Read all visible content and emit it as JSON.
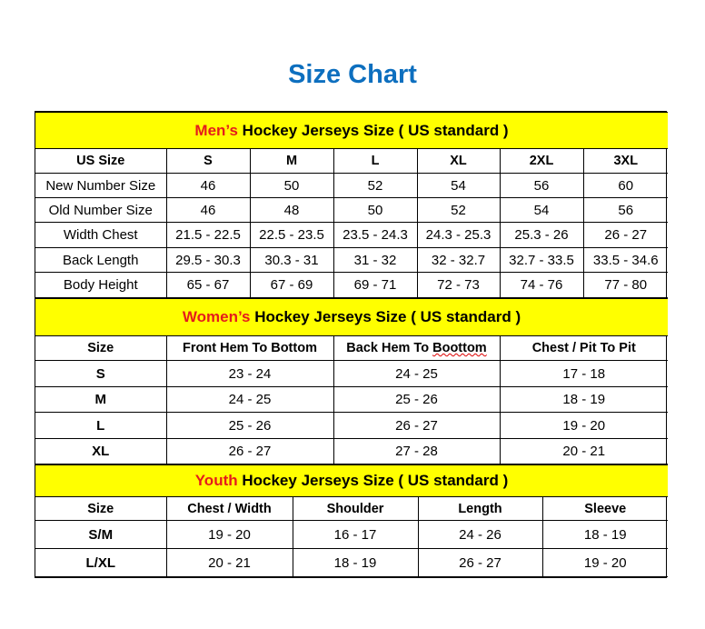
{
  "title": "Size Chart",
  "colors": {
    "title": "#0d6fbf",
    "banner_bg": "#ffff00",
    "highlight": "#e51c1c"
  },
  "sections": [
    {
      "id": "men",
      "banner_highlight": "Men’s",
      "banner_rest": " Hockey Jerseys Size ( US standard )",
      "headers": [
        "US Size",
        "S",
        "M",
        "L",
        "XL",
        "2XL",
        "3XL"
      ],
      "rows": [
        [
          "New Number Size",
          "46",
          "50",
          "52",
          "54",
          "56",
          "60"
        ],
        [
          "Old Number Size",
          "46",
          "48",
          "50",
          "52",
          "54",
          "56"
        ],
        [
          "Width Chest",
          "21.5 - 22.5",
          "22.5 - 23.5",
          "23.5 - 24.3",
          "24.3 - 25.3",
          "25.3 - 26",
          "26 - 27"
        ],
        [
          "Back Length",
          "29.5 - 30.3",
          "30.3 - 31",
          "31 - 32",
          "32 - 32.7",
          "32.7 - 33.5",
          "33.5 - 34.6"
        ],
        [
          "Body Height",
          "65 - 67",
          "67 - 69",
          "69 - 71",
          "72 - 73",
          "74 - 76",
          "77 - 80"
        ]
      ]
    },
    {
      "id": "women",
      "banner_highlight": "Women’s",
      "banner_rest": " Hockey Jerseys Size ( US standard )",
      "headers": [
        "Size",
        "Front Hem To Bottom",
        "Back Hem To Boottom",
        "Chest / Pit To Pit"
      ],
      "rows": [
        [
          "S",
          "23 - 24",
          "24 - 25",
          "17 - 18"
        ],
        [
          "M",
          "24 - 25",
          "25 - 26",
          "18 - 19"
        ],
        [
          "L",
          "25 - 26",
          "26 - 27",
          "19 - 20"
        ],
        [
          "XL",
          "26 - 27",
          "27 - 28",
          "20 - 21"
        ]
      ]
    },
    {
      "id": "youth",
      "banner_highlight": "Youth",
      "banner_rest": " Hockey Jerseys Size ( US standard )",
      "headers": [
        "Size",
        "Chest / Width",
        "Shoulder",
        "Length",
        "Sleeve"
      ],
      "rows": [
        [
          "S/M",
          "19 - 20",
          "16 - 17",
          "24 - 26",
          "18 - 19"
        ],
        [
          "L/XL",
          "20 - 21",
          "18 - 19",
          "26 - 27",
          "19 - 20"
        ]
      ]
    }
  ]
}
